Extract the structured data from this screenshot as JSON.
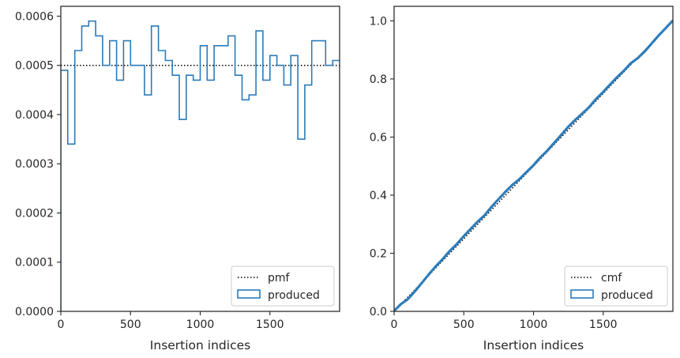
{
  "chart_data": [
    {
      "type": "step",
      "xlabel": "Insertion indices",
      "ylabel": "",
      "title": "",
      "xlim": [
        0,
        2000
      ],
      "ylim": [
        0,
        0.00062
      ],
      "xticks": [
        0,
        500,
        1000,
        1500
      ],
      "xtick_labels": [
        "0",
        "500",
        "1000",
        "1500"
      ],
      "yticks": [
        0,
        0.0001,
        0.0002,
        0.0003,
        0.0004,
        0.0005,
        0.0006
      ],
      "ytick_labels": [
        "0.0000",
        "0.0001",
        "0.0002",
        "0.0003",
        "0.0004",
        "0.0005",
        "0.0006"
      ],
      "legend": {
        "placement": "lower-right",
        "entries": [
          "pmf",
          "produced"
        ]
      },
      "reference": {
        "name": "pmf",
        "style": "dotted",
        "color": "#000000",
        "value": 0.0005
      },
      "series": [
        {
          "name": "produced",
          "color": "#2b7bb9",
          "bin_width": 50,
          "bin_edges_start": 0,
          "values": [
            0.00049,
            0.00034,
            0.00053,
            0.00058,
            0.00059,
            0.00056,
            0.0005,
            0.00055,
            0.00047,
            0.00055,
            0.0005,
            0.0005,
            0.00044,
            0.00058,
            0.00053,
            0.00051,
            0.00048,
            0.00039,
            0.00048,
            0.00047,
            0.00054,
            0.00047,
            0.00054,
            0.00054,
            0.00056,
            0.00048,
            0.00043,
            0.00044,
            0.00057,
            0.00047,
            0.00052,
            0.0005,
            0.00046,
            0.00052,
            0.00035,
            0.00046,
            0.00055,
            0.00055,
            0.0005,
            0.00051
          ]
        }
      ]
    },
    {
      "type": "step",
      "xlabel": "Insertion indices",
      "ylabel": "",
      "title": "",
      "xlim": [
        0,
        2000
      ],
      "ylim": [
        0,
        1.05
      ],
      "xticks": [
        0,
        500,
        1000,
        1500
      ],
      "xtick_labels": [
        "0",
        "500",
        "1000",
        "1500"
      ],
      "yticks": [
        0,
        0.2,
        0.4,
        0.6,
        0.8,
        1.0
      ],
      "ytick_labels": [
        "0.0",
        "0.2",
        "0.4",
        "0.6",
        "0.8",
        "1.0"
      ],
      "legend": {
        "placement": "lower-right",
        "entries": [
          "cmf",
          "produced"
        ]
      },
      "reference": {
        "name": "cmf",
        "style": "dotted",
        "color": "#000000",
        "from": [
          0,
          0
        ],
        "to": [
          2000,
          1
        ]
      },
      "series": [
        {
          "name": "produced",
          "color": "#2b7bb9",
          "derived_from": "cumulative sum of left panel values"
        }
      ]
    }
  ]
}
